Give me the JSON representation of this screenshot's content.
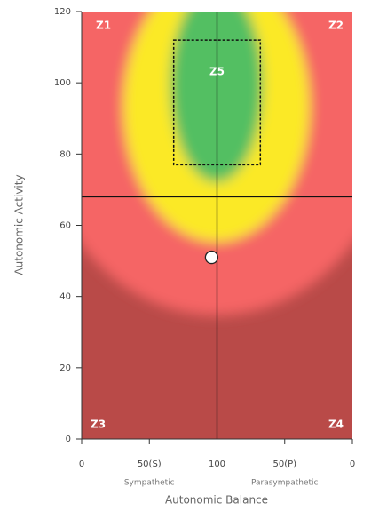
{
  "chart_data": {
    "type": "scatter",
    "xlabel": "Autonomic Balance",
    "ylabel": "Autonomic Activity",
    "x_sublabels": [
      {
        "value": 50,
        "label": "Sympathetic"
      },
      {
        "value": 150,
        "label": "Parasympathetic"
      }
    ],
    "xlim": [
      0,
      200
    ],
    "ylim": [
      0,
      120
    ],
    "xticks": [
      0,
      {
        "value": 50,
        "label": "50(S)"
      },
      100,
      {
        "value": 150,
        "label": "50(P)"
      },
      {
        "value": 200,
        "label": "0"
      }
    ],
    "yticks": [
      0,
      20,
      40,
      60,
      80,
      100,
      120
    ],
    "crosshair": {
      "x": 100,
      "y": 68
    },
    "target_zone": {
      "label": "Z5",
      "xlim": [
        68,
        132
      ],
      "ylim": [
        77,
        112
      ]
    },
    "zones": [
      "Z1",
      "Z2",
      "Z3",
      "Z4"
    ],
    "series": [
      {
        "color": "#ffffff",
        "x": [
          96
        ],
        "values": [
          51
        ]
      }
    ]
  }
}
